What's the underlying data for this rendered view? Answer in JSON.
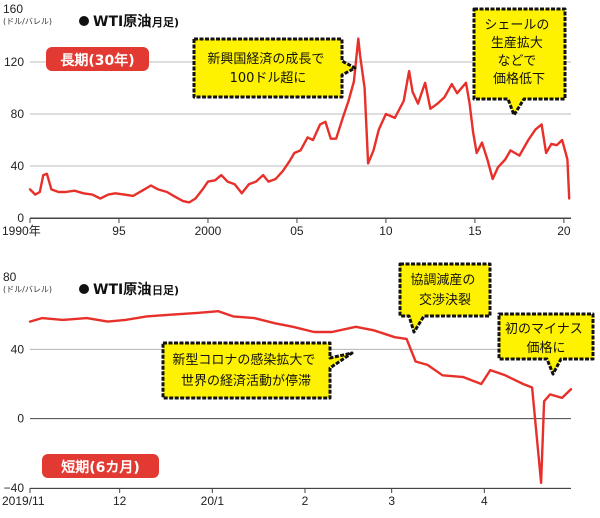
{
  "colors": {
    "line": "#e8302b",
    "badge": "#e23a32",
    "callout_fill": "#fff200",
    "callout_stroke": "#111111"
  },
  "chart_data": [
    {
      "type": "line",
      "unit": "(ドル/バレル)",
      "title_main": "WTI原油",
      "title_sub": "(月足)",
      "badge": "長期(30年)",
      "ylim": [
        0,
        160
      ],
      "xlim": [
        1990,
        2020.4
      ],
      "yticks": [
        {
          "value": 0,
          "label": "0"
        },
        {
          "value": 40,
          "label": "40"
        },
        {
          "value": 80,
          "label": "80"
        },
        {
          "value": 120,
          "label": "120"
        },
        {
          "value": 160,
          "label": "160"
        }
      ],
      "xticks": [
        {
          "value": 1990,
          "label": "1990年"
        },
        {
          "value": 1995,
          "label": "95"
        },
        {
          "value": 2000,
          "label": "2000"
        },
        {
          "value": 2005,
          "label": "05"
        },
        {
          "value": 2010,
          "label": "10"
        },
        {
          "value": 2015,
          "label": "15"
        },
        {
          "value": 2020,
          "label": "20"
        }
      ],
      "grid": "horizontal",
      "series": [
        {
          "x": [
            1990.0,
            1990.3,
            1990.55,
            1990.75,
            1990.95,
            1991.2,
            1991.6,
            1992.0,
            1992.5,
            1993.0,
            1993.5,
            1993.95,
            1994.4,
            1994.8,
            1995.3,
            1995.8,
            1996.3,
            1996.8,
            1997.2,
            1997.7,
            1998.2,
            1998.6,
            1998.95,
            1999.3,
            1999.7,
            2000.0,
            2000.4,
            2000.75,
            2001.1,
            2001.5,
            2001.9,
            2002.3,
            2002.7,
            2003.1,
            2003.4,
            2003.8,
            2004.2,
            2004.6,
            2004.85,
            2005.2,
            2005.6,
            2005.9,
            2006.3,
            2006.6,
            2006.9,
            2007.2,
            2007.6,
            2007.9,
            2008.2,
            2008.45,
            2008.55,
            2008.8,
            2009.0,
            2009.3,
            2009.6,
            2010.0,
            2010.5,
            2011.0,
            2011.3,
            2011.5,
            2011.8,
            2012.2,
            2012.5,
            2012.9,
            2013.3,
            2013.7,
            2014.0,
            2014.5,
            2014.7,
            2014.9,
            2015.1,
            2015.4,
            2015.7,
            2016.0,
            2016.3,
            2016.7,
            2017.0,
            2017.5,
            2018.0,
            2018.4,
            2018.75,
            2019.0,
            2019.3,
            2019.6,
            2019.9,
            2020.1,
            2020.2,
            2020.3
          ],
          "values": [
            22,
            18,
            20,
            33,
            34,
            22,
            20,
            20,
            21,
            19,
            18,
            15,
            18,
            19,
            18,
            17,
            21,
            25,
            22,
            20,
            16,
            13,
            12,
            15,
            22,
            28,
            29,
            33,
            28,
            26,
            19,
            26,
            28,
            33,
            28,
            30,
            36,
            44,
            50,
            52,
            62,
            60,
            72,
            74,
            61,
            61,
            78,
            90,
            105,
            138,
            125,
            100,
            42,
            52,
            68,
            80,
            77,
            90,
            113,
            97,
            88,
            104,
            84,
            88,
            93,
            103,
            96,
            104,
            88,
            66,
            50,
            58,
            45,
            30,
            39,
            45,
            52,
            48,
            60,
            68,
            72,
            50,
            57,
            56,
            60,
            50,
            45,
            15
          ]
        }
      ]
    },
    {
      "type": "line",
      "unit": "(ドル/バレル)",
      "title_main": "WTI原油",
      "title_sub": "(日足)",
      "badge": "短期(6カ月)",
      "ylim": [
        -40,
        80
      ],
      "xlim": [
        "2019-11-01",
        "2020-04-30"
      ],
      "yticks": [
        {
          "value": -40,
          "label": "−40"
        },
        {
          "value": 0,
          "label": "0"
        },
        {
          "value": 40,
          "label": "40"
        },
        {
          "value": 80,
          "label": "80"
        }
      ],
      "xticks": [
        {
          "value": "2019-11-01",
          "label": "2019/11"
        },
        {
          "value": "2019-12-01",
          "label": "12"
        },
        {
          "value": "2020-01-01",
          "label": "20/1"
        },
        {
          "value": "2020-02-01",
          "label": "2"
        },
        {
          "value": "2020-03-01",
          "label": "3"
        },
        {
          "value": "2020-04-01",
          "label": "4"
        }
      ],
      "grid": "horizontal",
      "series": [
        {
          "x": [
            "2019-11-01",
            "2019-11-05",
            "2019-11-12",
            "2019-11-20",
            "2019-11-27",
            "2019-12-03",
            "2019-12-10",
            "2019-12-18",
            "2019-12-27",
            "2020-01-03",
            "2020-01-08",
            "2020-01-15",
            "2020-01-22",
            "2020-01-28",
            "2020-02-04",
            "2020-02-10",
            "2020-02-18",
            "2020-02-24",
            "2020-03-02",
            "2020-03-06",
            "2020-03-09",
            "2020-03-13",
            "2020-03-18",
            "2020-03-25",
            "2020-03-31",
            "2020-04-03",
            "2020-04-08",
            "2020-04-14",
            "2020-04-17",
            "2020-04-20",
            "2020-04-21",
            "2020-04-23",
            "2020-04-27",
            "2020-04-30"
          ],
          "values": [
            56,
            58,
            57,
            58,
            56,
            57,
            59,
            60,
            61,
            62,
            59,
            58,
            55,
            53,
            50,
            50,
            53,
            51,
            47,
            46,
            33,
            31,
            25,
            24,
            20,
            28,
            25,
            20,
            18,
            -37,
            10,
            14,
            12,
            17
          ]
        }
      ]
    }
  ],
  "callouts": {
    "long_left": "新興国経済の成長で\n100ドル超に",
    "long_right": "シェールの\n生産拡大\nなどで\n価格低下",
    "short_top": "協調減産の\n交渉決裂",
    "short_mid": "新型コロナの感染拡大で\n世界の経済活動が停滞",
    "short_right": "初のマイナス\n価格に"
  }
}
